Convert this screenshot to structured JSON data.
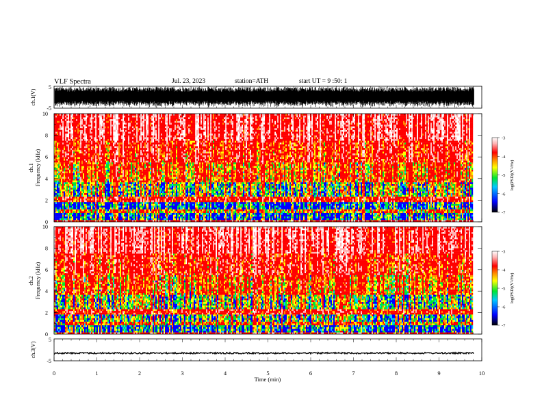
{
  "header": {
    "title": "VLF Spectra",
    "date": "Jul. 23, 2023",
    "station": "station=ATH",
    "start_ut": "start UT = 9 :50: 1"
  },
  "chart_data": [
    {
      "type": "line",
      "name": "ch1-waveform",
      "ylabel": "ch.1(V)",
      "ylim": [
        -5,
        5
      ],
      "y_tick_labels": [
        "5",
        "-5"
      ],
      "amplitude_description_v": 5,
      "color": "#000000"
    },
    {
      "type": "heatmap",
      "name": "ch1-spectrogram",
      "ylabel_line1": "ch.1",
      "ylabel_line2": "Frequency (kHz)",
      "ylim": [
        0,
        10
      ],
      "y_tick_labels": [
        "0",
        "2",
        "4",
        "6",
        "8",
        "10"
      ],
      "y_ticks": [
        0,
        2,
        4,
        6,
        8,
        10
      ],
      "colorbar": {
        "label": "log(PSD)(V²/Hz)",
        "range": [
          -7,
          -3
        ],
        "tick_labels": [
          "-3",
          "-4",
          "-5",
          "-6",
          "-7"
        ],
        "ticks": [
          -3,
          -4,
          -5,
          -6,
          -7
        ]
      }
    },
    {
      "type": "heatmap",
      "name": "ch2-spectrogram",
      "ylabel_line1": "ch.2",
      "ylabel_line2": "Frequency (kHz)",
      "ylim": [
        0,
        10
      ],
      "y_tick_labels": [
        "0",
        "2",
        "4",
        "6",
        "8",
        "10"
      ],
      "y_ticks": [
        0,
        2,
        4,
        6,
        8,
        10
      ],
      "colorbar": {
        "label": "log(PSD)(V²/Hz)",
        "range": [
          -7,
          -3
        ],
        "tick_labels": [
          "-3",
          "-4",
          "-5",
          "-6",
          "-7"
        ],
        "ticks": [
          -3,
          -4,
          -5,
          -6,
          -7
        ]
      }
    },
    {
      "type": "line",
      "name": "ch3-waveform",
      "ylabel": "ch.3(V)",
      "ylim": [
        -5,
        5
      ],
      "y_tick_labels": [
        "5",
        "-5"
      ],
      "level_v": -1.5,
      "color": "#000000"
    }
  ],
  "x_axis": {
    "label": "Time (min)",
    "range": [
      0,
      10
    ],
    "tick_labels": [
      "0",
      "1",
      "2",
      "3",
      "4",
      "5",
      "6",
      "7",
      "8",
      "9",
      "10"
    ],
    "data_end_min": 9.82
  },
  "colors": {
    "white": "#ffffff",
    "pink": "#ffb4b4",
    "red": "#ff0000",
    "orange": "#ff8c00",
    "yellow": "#ffff00",
    "green": "#00e632",
    "cyan": "#00c8ff",
    "blue": "#0000ff",
    "black": "#000000"
  }
}
